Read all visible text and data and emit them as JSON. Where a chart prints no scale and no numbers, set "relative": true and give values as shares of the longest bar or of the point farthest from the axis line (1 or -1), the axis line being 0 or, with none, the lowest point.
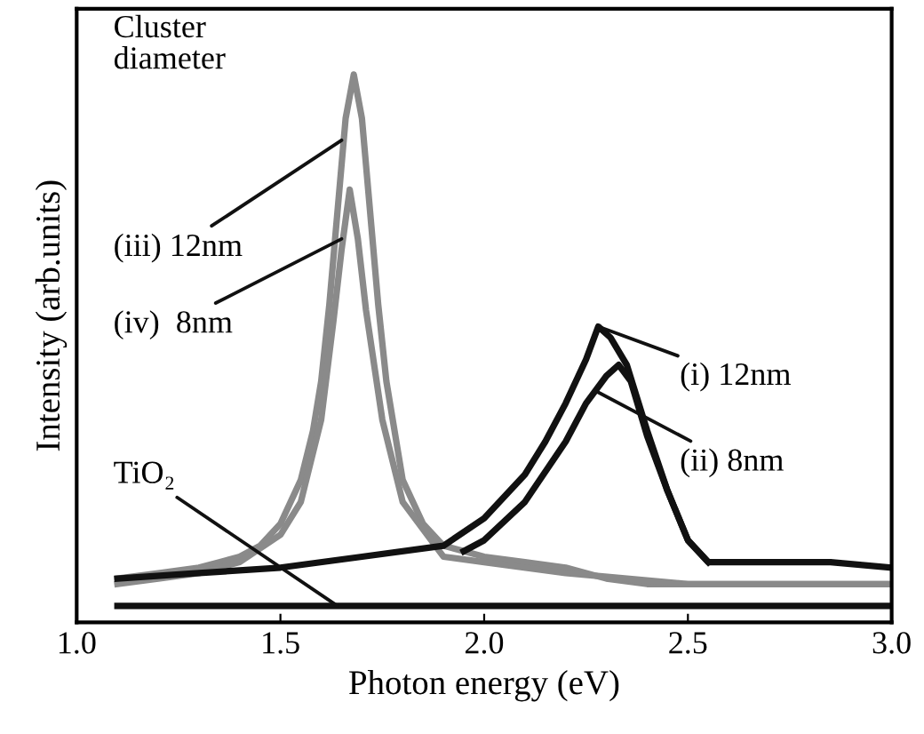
{
  "chart_data": {
    "type": "line",
    "relative": true,
    "xlabel": "Photon energy (eV)",
    "ylabel": "Intensity (arb.units)",
    "xlim": [
      1.0,
      3.0
    ],
    "xticks": [
      {
        "value": 1.0,
        "label": "1.0"
      },
      {
        "value": 1.5,
        "label": "1.5"
      },
      {
        "value": 2.0,
        "label": "2.0"
      },
      {
        "value": 2.5,
        "label": "2.5"
      },
      {
        "value": 3.0,
        "label": "3.0"
      }
    ],
    "tick_labels": "x",
    "grid": false,
    "legend": false,
    "series": [
      {
        "color": "#8a8a8a",
        "x": [
          1.1,
          1.2,
          1.3,
          1.35,
          1.4,
          1.45,
          1.5,
          1.55,
          1.58,
          1.6,
          1.62,
          1.64,
          1.66,
          1.68,
          1.7,
          1.72,
          1.74,
          1.76,
          1.8,
          1.85,
          1.9,
          1.95,
          2.0,
          2.1,
          2.2,
          2.3,
          2.4,
          2.5,
          2.7,
          3.0
        ],
        "values": [
          0.08,
          0.09,
          0.1,
          0.11,
          0.12,
          0.14,
          0.18,
          0.26,
          0.35,
          0.44,
          0.58,
          0.75,
          0.92,
          1.0,
          0.92,
          0.75,
          0.58,
          0.44,
          0.26,
          0.18,
          0.14,
          0.13,
          0.12,
          0.11,
          0.1,
          0.08,
          0.07,
          0.07,
          0.07,
          0.07
        ]
      },
      {
        "color": "#8a8a8a",
        "x": [
          1.1,
          1.2,
          1.3,
          1.4,
          1.5,
          1.55,
          1.6,
          1.63,
          1.65,
          1.67,
          1.69,
          1.71,
          1.75,
          1.8,
          1.9,
          2.0,
          2.2,
          2.5,
          3.0
        ],
        "values": [
          0.07,
          0.08,
          0.09,
          0.11,
          0.16,
          0.22,
          0.37,
          0.55,
          0.68,
          0.79,
          0.7,
          0.57,
          0.37,
          0.22,
          0.12,
          0.11,
          0.09,
          0.07,
          0.07
        ]
      },
      {
        "color": "#111111",
        "x": [
          1.1,
          1.3,
          1.5,
          1.7,
          1.9,
          2.0,
          2.1,
          2.15,
          2.2,
          2.25,
          2.28,
          2.31,
          2.35,
          2.4,
          2.45,
          2.5,
          2.55,
          2.7,
          2.85,
          3.0
        ],
        "values": [
          0.08,
          0.09,
          0.1,
          0.12,
          0.14,
          0.19,
          0.27,
          0.33,
          0.4,
          0.48,
          0.54,
          0.52,
          0.47,
          0.35,
          0.24,
          0.15,
          0.11,
          0.11,
          0.11,
          0.1
        ]
      },
      {
        "color": "#111111",
        "x": [
          1.95,
          2.0,
          2.1,
          2.2,
          2.25,
          2.3,
          2.33,
          2.36,
          2.4,
          2.45,
          2.5,
          2.55
        ],
        "values": [
          0.13,
          0.15,
          0.22,
          0.33,
          0.4,
          0.45,
          0.47,
          0.44,
          0.34,
          0.24,
          0.15,
          0.11
        ]
      },
      {
        "color": "#111111",
        "x": [
          1.1,
          1.5,
          2.0,
          2.5,
          3.0
        ],
        "values": [
          0.03,
          0.03,
          0.03,
          0.03,
          0.03
        ]
      }
    ],
    "annotations": [
      "Cluster\ndiameter",
      {
        "text": "(iii) 12nm",
        "x": 1.65,
        "y": 0.88
      },
      {
        "text": "(iv)  8nm",
        "x": 1.65,
        "y": 0.7
      },
      {
        "text": "(i) 12nm",
        "x": 2.28,
        "y": 0.54
      },
      {
        "text": "(ii) 8nm",
        "x": 2.28,
        "y": 0.42
      },
      {
        "text": "TiO₂",
        "x": 1.64,
        "y": 0.03
      }
    ]
  }
}
